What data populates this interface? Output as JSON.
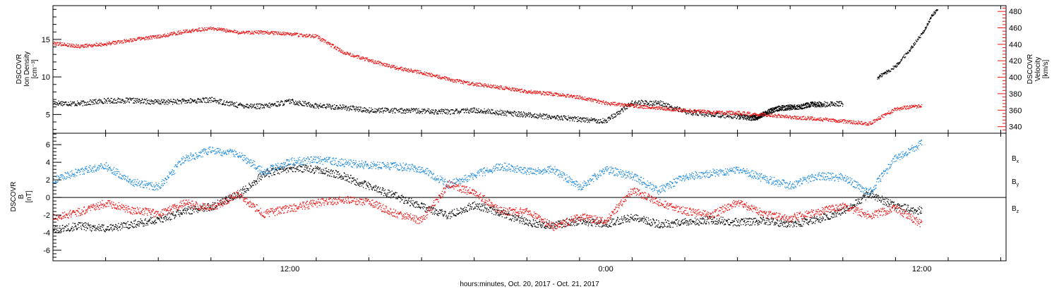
{
  "chart_data": [
    {
      "type": "scatter",
      "panel": "ion-density-velocity",
      "ylabel_lines": [
        "DSCOVR",
        "Ion Density",
        "[cm⁻³]"
      ],
      "y2label_lines": [
        "DSCOVR",
        "Velocity",
        "[km/s]"
      ],
      "ylim": [
        2.5,
        19.5
      ],
      "y_ticks": [
        5,
        10,
        15
      ],
      "y_tick_labels": [
        "5",
        "10",
        "15"
      ],
      "y2lim": [
        332,
        487
      ],
      "y2_ticks": [
        340,
        360,
        380,
        400,
        420,
        440,
        460,
        480
      ],
      "y2_tick_labels": [
        "340",
        "360",
        "380",
        "400",
        "420",
        "440",
        "460",
        "480"
      ],
      "y2_color": "#ee1111",
      "series": [
        {
          "color": "#000000",
          "axis": "left",
          "x": [
            3,
            4,
            5,
            6,
            7,
            8,
            9,
            10,
            11,
            12,
            13,
            14,
            15,
            16,
            17,
            18,
            19,
            20,
            21,
            22,
            23,
            24,
            25,
            26,
            27,
            28,
            29,
            29.5,
            29.8,
            30,
            30.3,
            30.6,
            31,
            31.4,
            31.8,
            32.2,
            33
          ],
          "y": [
            6.6,
            6.5,
            6.9,
            6.9,
            6.7,
            6.8,
            7.0,
            6.3,
            6.1,
            6.8,
            6.2,
            6.0,
            5.6,
            5.6,
            5.5,
            5.4,
            5.6,
            5.3,
            5.0,
            4.7,
            4.4,
            4.2,
            6.6,
            6.6,
            5.4,
            5.0,
            4.8,
            4.6,
            4.7,
            5.2,
            5.6,
            5.9,
            6.0,
            6.1,
            6.4,
            6.4,
            6.5
          ]
        },
        {
          "color": "#000000",
          "axis": "left",
          "x": [
            34.3,
            34.5,
            34.7,
            35.0,
            35.2,
            35.5,
            35.7,
            36.0,
            36.2,
            36.4,
            36.6
          ],
          "y": [
            9.9,
            10.4,
            10.8,
            11.5,
            12.3,
            13.5,
            14.5,
            15.8,
            17.0,
            18.4,
            19.0
          ]
        },
        {
          "color": "#ee1111",
          "axis": "right",
          "x": [
            3,
            4,
            5,
            6,
            7,
            8,
            9,
            10,
            11,
            12,
            13,
            14,
            15,
            16,
            17,
            18,
            19,
            20,
            21,
            22,
            23,
            24,
            25,
            26,
            27,
            28,
            29,
            30,
            31,
            32,
            33,
            34,
            35,
            36
          ],
          "y": [
            442,
            438,
            441,
            446,
            450,
            456,
            460,
            455,
            455,
            453,
            450,
            431,
            421,
            412,
            406,
            398,
            392,
            388,
            383,
            380,
            376,
            369,
            366,
            363,
            360,
            358,
            357,
            355,
            352,
            350,
            347,
            344,
            362,
            366
          ]
        }
      ]
    },
    {
      "type": "scatter",
      "panel": "magnetic-field",
      "ylabel_lines": [
        "DSCOVR",
        "B",
        "[nT]"
      ],
      "ylim": [
        -7.2,
        7.3
      ],
      "y_ticks": [
        -6,
        -4,
        -2,
        0,
        2,
        4,
        6
      ],
      "y_tick_labels": [
        "-6",
        "-4",
        "-2",
        "0",
        "2",
        "4",
        "6"
      ],
      "zero_line": true,
      "series": [
        {
          "color": "#000000",
          "legend": {
            "base": "B",
            "sub": "x"
          },
          "x": [
            3,
            4,
            5,
            6,
            7,
            8,
            9,
            10,
            11,
            12,
            13,
            14,
            15,
            16,
            17,
            18,
            19,
            20,
            21,
            22,
            23,
            24,
            25,
            26,
            27,
            28,
            29,
            30,
            31,
            32,
            33,
            34,
            35,
            36
          ],
          "y": [
            -3.6,
            -3.2,
            -3.5,
            -3.0,
            -2.5,
            -1.5,
            -1.0,
            0.3,
            2.7,
            3.4,
            3.2,
            2.5,
            1.3,
            0.2,
            -1.0,
            -2.0,
            -0.8,
            -1.7,
            -2.8,
            -3.1,
            -2.6,
            -3.0,
            -2.2,
            -3.0,
            -2.8,
            -2.5,
            -2.8,
            -2.6,
            -3.0,
            -2.5,
            -1.5,
            0.5,
            -1.0,
            -1.5
          ]
        },
        {
          "color": "#1f8bdf",
          "legend": {
            "base": "B",
            "sub": "y"
          },
          "x": [
            3,
            4,
            5,
            6,
            7,
            8,
            9,
            10,
            11,
            12,
            13,
            14,
            15,
            16,
            17,
            18,
            19,
            20,
            21,
            22,
            23,
            24,
            25,
            26,
            27,
            28,
            29,
            30,
            31,
            32,
            33,
            34,
            35,
            36
          ],
          "y": [
            2.0,
            3.0,
            3.6,
            1.8,
            1.2,
            4.5,
            5.4,
            5.0,
            3.0,
            4.1,
            4.3,
            4.0,
            3.7,
            3.6,
            3.3,
            1.5,
            2.6,
            3.6,
            3.0,
            3.2,
            1.2,
            3.2,
            2.5,
            0.8,
            2.4,
            2.8,
            3.2,
            2.2,
            1.4,
            2.5,
            2.3,
            0.6,
            4.5,
            6.2
          ]
        },
        {
          "color": "#ee1111",
          "legend": {
            "base": "B",
            "sub": "z"
          },
          "x": [
            3,
            4,
            5,
            6,
            7,
            8,
            9,
            10,
            11,
            12,
            13,
            14,
            15,
            16,
            17,
            18,
            19,
            20,
            21,
            22,
            23,
            24,
            25,
            26,
            27,
            28,
            29,
            30,
            31,
            32,
            33,
            34,
            35,
            36
          ],
          "y": [
            -2.3,
            -1.6,
            -0.6,
            -1.4,
            -1.8,
            -0.6,
            -1.2,
            0.4,
            -1.8,
            -1.2,
            -0.6,
            -0.2,
            -0.5,
            -1.8,
            -2.6,
            1.5,
            0.6,
            -1.5,
            -1.6,
            -3.3,
            -2.2,
            -2.6,
            0.9,
            -0.5,
            -1.5,
            -2.0,
            -0.5,
            -1.8,
            -2.3,
            -1.6,
            -1.0,
            -2.0,
            -1.2,
            -3.0
          ]
        }
      ]
    }
  ],
  "x_axis": {
    "xlim": [
      3,
      39.2
    ],
    "major_ticks": [
      12,
      24,
      36
    ],
    "tick_labels": [
      "12:00",
      "0:00",
      "12:00"
    ],
    "xlabel": "hours:minutes, Oct. 20, 2017 - Oct. 21, 2017"
  }
}
